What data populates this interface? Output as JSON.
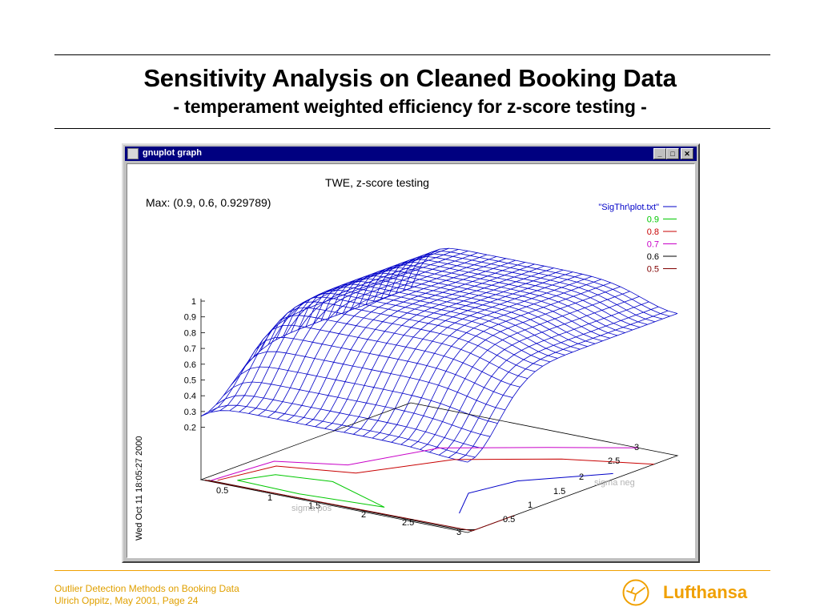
{
  "slide": {
    "title": "Sensitivity Analysis on Cleaned Booking Data",
    "subtitle": "- temperament weighted efficiency for z-score testing -"
  },
  "window": {
    "title": "gnuplot graph",
    "minimize_glyph": "_",
    "maximize_glyph": "□",
    "close_glyph": "✕"
  },
  "plot": {
    "title": "TWE, z-score testing",
    "max_label": "Max: (0.9, 0.6, 0.929789)",
    "timestamp": "Wed Oct 11 18:05:27 2000",
    "x_axis_label": "sigma pos",
    "y_axis_label": "sigma neg",
    "z_ticks": [
      "1",
      "0.9",
      "0.8",
      "0.7",
      "0.6",
      "0.5",
      "0.4",
      "0.3",
      "0.2"
    ],
    "x_ticks": [
      "0.5",
      "1",
      "1.5",
      "2",
      "2.5",
      "3"
    ],
    "y_ticks": [
      "0.5",
      "1",
      "1.5",
      "2",
      "2.5",
      "3"
    ],
    "legend": [
      {
        "label": "\"SigThr\\plot.txt\"",
        "color": "#0000c8"
      },
      {
        "label": "0.9",
        "color": "#00c800"
      },
      {
        "label": "0.8",
        "color": "#c80000"
      },
      {
        "label": "0.7",
        "color": "#c800c8"
      },
      {
        "label": "0.6",
        "color": "#000000"
      },
      {
        "label": "0.5",
        "color": "#800000"
      }
    ]
  },
  "footer": {
    "line1": "Outlier Detection Methods on Booking Data",
    "line2": "Ulrich Oppitz, May 2001, Page 24",
    "brand": "Lufthansa",
    "accent_color": "#f0a000"
  }
}
